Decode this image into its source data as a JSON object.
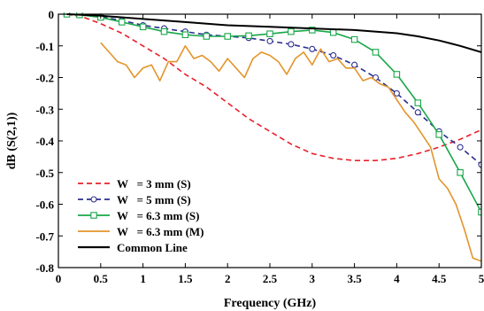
{
  "chart_data": {
    "type": "line",
    "title": "",
    "xlabel": "Frequency (GHz)",
    "ylabel": "dB (S(2,1))",
    "xlim": [
      0,
      5
    ],
    "ylim": [
      -0.8,
      0
    ],
    "xticks": [
      0,
      0.5,
      1,
      1.5,
      2,
      2.5,
      3,
      3.5,
      4,
      4.5,
      5
    ],
    "xtick_labels": [
      "0",
      "0.5",
      "1",
      "1.5",
      "2",
      "2.5",
      "3",
      "3.5",
      "4",
      "4.5",
      "5"
    ],
    "yticks": [
      0,
      -0.1,
      -0.2,
      -0.3,
      -0.4,
      -0.5,
      -0.6,
      -0.7,
      -0.8
    ],
    "ytick_labels": [
      "0",
      "-0.1",
      "-0.2",
      "-0.3",
      "-0.4",
      "-0.5",
      "-0.6",
      "-0.7",
      "-0.8"
    ],
    "grid": false,
    "legend_position": "bottom-left",
    "series": [
      {
        "name": "W   = 3 mm (S)",
        "color": "#e8202a",
        "dash": "dashed",
        "marker": "none",
        "x": [
          0.1,
          0.3,
          0.5,
          0.75,
          1.0,
          1.25,
          1.5,
          1.75,
          2.0,
          2.25,
          2.5,
          2.75,
          3.0,
          3.25,
          3.5,
          3.75,
          4.0,
          4.25,
          4.5,
          4.75,
          5.0
        ],
        "y": [
          0,
          -0.01,
          -0.03,
          -0.06,
          -0.1,
          -0.14,
          -0.19,
          -0.23,
          -0.28,
          -0.33,
          -0.37,
          -0.41,
          -0.44,
          -0.455,
          -0.462,
          -0.462,
          -0.455,
          -0.44,
          -0.42,
          -0.395,
          -0.365
        ]
      },
      {
        "name": "W   = 5 mm (S)",
        "color": "#2b2f8e",
        "dash": "dashed",
        "marker": "circle",
        "x": [
          0.1,
          0.25,
          0.5,
          0.75,
          1.0,
          1.25,
          1.5,
          1.75,
          2.0,
          2.25,
          2.5,
          2.75,
          3.0,
          3.25,
          3.5,
          3.75,
          4.0,
          4.25,
          4.5,
          4.75,
          5.0
        ],
        "y": [
          0,
          -0.002,
          -0.008,
          -0.02,
          -0.035,
          -0.045,
          -0.055,
          -0.065,
          -0.07,
          -0.075,
          -0.085,
          -0.095,
          -0.11,
          -0.13,
          -0.16,
          -0.2,
          -0.25,
          -0.31,
          -0.37,
          -0.42,
          -0.475
        ]
      },
      {
        "name": "W   = 6.3 mm (S)",
        "color": "#19a74a",
        "dash": "solid",
        "marker": "square",
        "x": [
          0.1,
          0.25,
          0.5,
          0.75,
          1.0,
          1.25,
          1.5,
          1.75,
          2.0,
          2.25,
          2.5,
          2.75,
          3.0,
          3.25,
          3.5,
          3.75,
          4.0,
          4.25,
          4.5,
          4.75,
          5.0
        ],
        "y": [
          0,
          -0.002,
          -0.01,
          -0.025,
          -0.04,
          -0.055,
          -0.065,
          -0.07,
          -0.07,
          -0.068,
          -0.062,
          -0.055,
          -0.05,
          -0.058,
          -0.08,
          -0.12,
          -0.19,
          -0.28,
          -0.38,
          -0.5,
          -0.625
        ]
      },
      {
        "name": "W   = 6.3 mm (M)",
        "color": "#e3942a",
        "dash": "solid",
        "marker": "none",
        "x": [
          0.5,
          0.6,
          0.7,
          0.8,
          0.9,
          1.0,
          1.1,
          1.2,
          1.3,
          1.4,
          1.5,
          1.6,
          1.7,
          1.8,
          1.9,
          2.0,
          2.1,
          2.2,
          2.3,
          2.4,
          2.5,
          2.6,
          2.7,
          2.8,
          2.9,
          3.0,
          3.1,
          3.2,
          3.3,
          3.4,
          3.5,
          3.6,
          3.7,
          3.8,
          3.9,
          4.0,
          4.1,
          4.2,
          4.3,
          4.4,
          4.5,
          4.6,
          4.7,
          4.8,
          4.9,
          5.0
        ],
        "y": [
          -0.09,
          -0.12,
          -0.15,
          -0.16,
          -0.2,
          -0.17,
          -0.16,
          -0.21,
          -0.15,
          -0.15,
          -0.1,
          -0.14,
          -0.13,
          -0.15,
          -0.18,
          -0.14,
          -0.17,
          -0.2,
          -0.14,
          -0.12,
          -0.13,
          -0.15,
          -0.19,
          -0.14,
          -0.12,
          -0.16,
          -0.11,
          -0.15,
          -0.14,
          -0.17,
          -0.17,
          -0.21,
          -0.2,
          -0.22,
          -0.23,
          -0.27,
          -0.31,
          -0.34,
          -0.38,
          -0.42,
          -0.52,
          -0.55,
          -0.6,
          -0.68,
          -0.77,
          -0.78
        ]
      },
      {
        "name": "Common Line",
        "color": "#000000",
        "dash": "solid",
        "marker": "none",
        "x": [
          0.1,
          0.5,
          1.0,
          1.5,
          2.0,
          2.5,
          3.0,
          3.5,
          4.0,
          4.25,
          4.5,
          4.75,
          5.0
        ],
        "y": [
          0,
          -0.005,
          -0.015,
          -0.025,
          -0.035,
          -0.04,
          -0.045,
          -0.05,
          -0.06,
          -0.07,
          -0.083,
          -0.1,
          -0.12
        ]
      }
    ]
  }
}
